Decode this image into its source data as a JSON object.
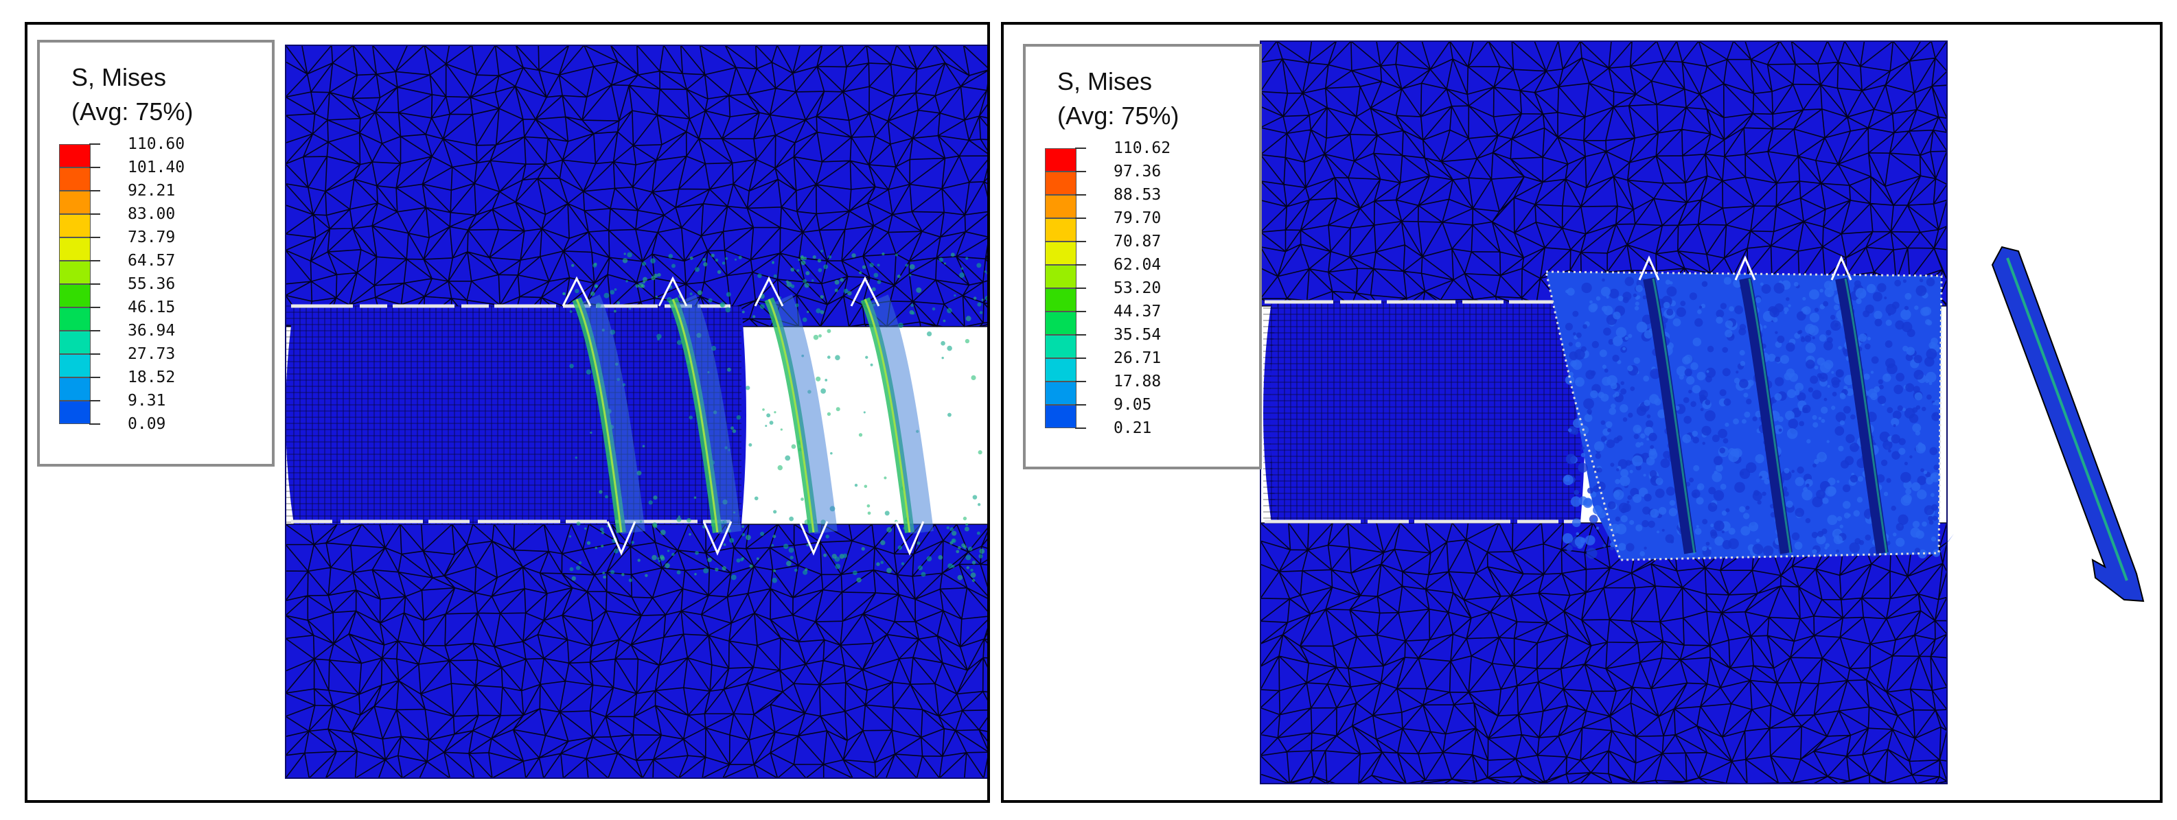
{
  "panels": [
    {
      "legend": {
        "title_line1": "S, Mises",
        "title_line2": "(Avg: 75%)",
        "values": [
          "110.60",
          "101.40",
          "92.21",
          "83.00",
          "73.79",
          "64.57",
          "55.36",
          "46.15",
          "36.94",
          "27.73",
          "18.52",
          "9.31",
          "0.09"
        ]
      },
      "state": "intact"
    },
    {
      "legend": {
        "title_line1": "S, Mises",
        "title_line2": "(Avg: 75%)",
        "values": [
          "110.62",
          "97.36",
          "88.53",
          "79.70",
          "70.87",
          "62.04",
          "53.20",
          "44.37",
          "35.54",
          "26.71",
          "17.88",
          "9.05",
          "0.21"
        ]
      },
      "state": "fractured"
    }
  ],
  "colors": {
    "scale": [
      "#ff0000",
      "#ff5a00",
      "#ff9900",
      "#ffcc00",
      "#e6f000",
      "#99ee00",
      "#33dd00",
      "#00dd55",
      "#00ddaa",
      "#00ccdd",
      "#0099ee",
      "#0055ee",
      "#0000ff"
    ],
    "mesh_fill": "#1515d8",
    "mesh_line": "#000000"
  }
}
